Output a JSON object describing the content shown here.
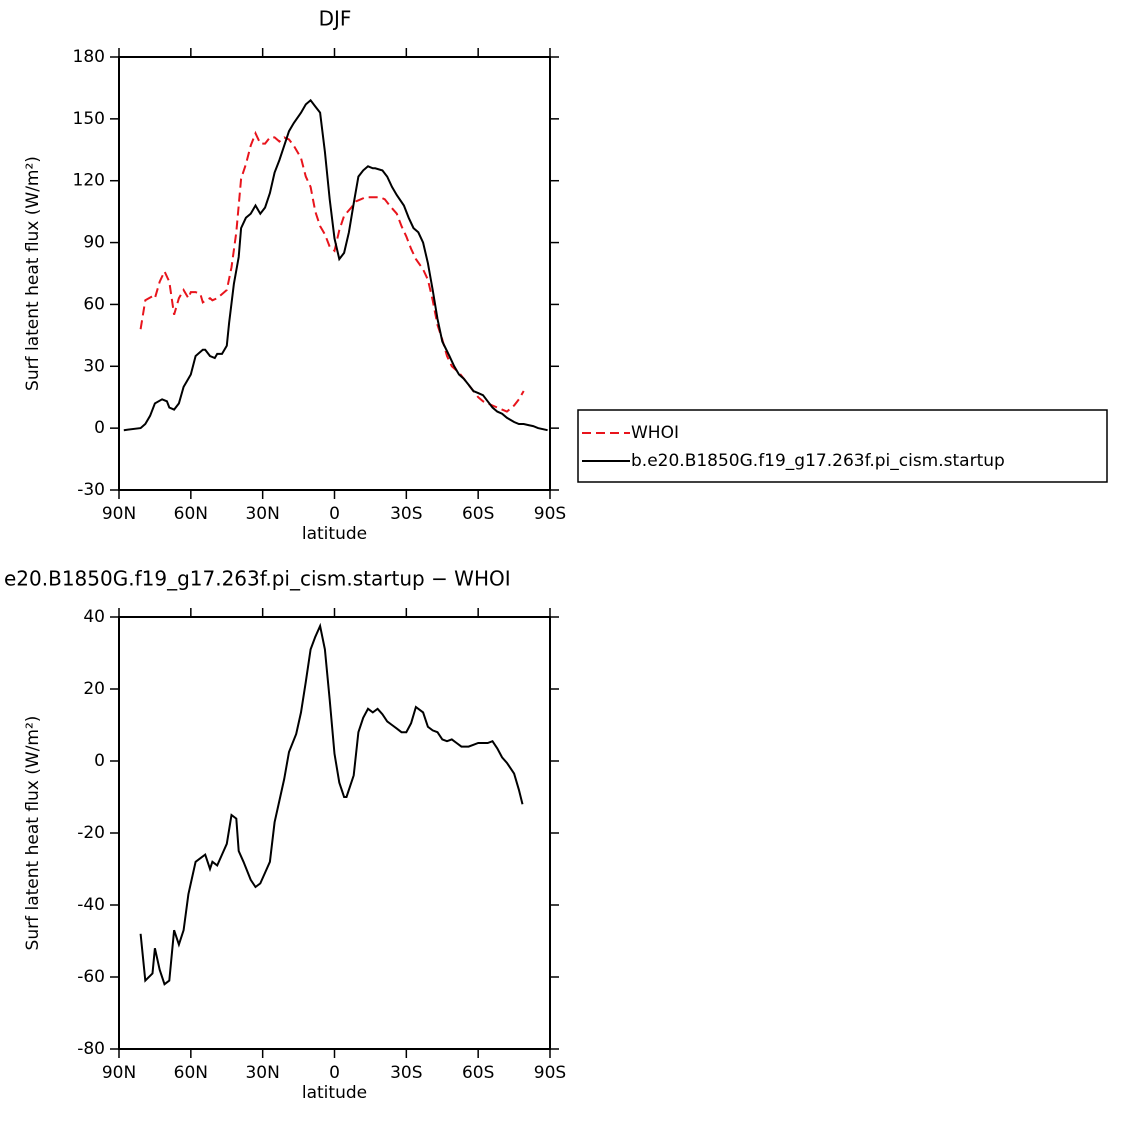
{
  "chart_data": [
    {
      "type": "line",
      "title": "DJF",
      "x_label": "latitude",
      "y_label": "Surf latent heat flux (W/m²)",
      "xlim": [
        90,
        -90
      ],
      "xticks": [
        {
          "value": 90,
          "label": "90N"
        },
        {
          "value": 60,
          "label": "60N"
        },
        {
          "value": 30,
          "label": "30N"
        },
        0,
        {
          "value": -30,
          "label": "30S"
        },
        {
          "value": -60,
          "label": "60S"
        },
        {
          "value": -90,
          "label": "90S"
        }
      ],
      "ylim": [
        -30,
        180
      ],
      "yticks": [
        -30,
        0,
        30,
        60,
        90,
        120,
        150,
        180
      ],
      "legend_position": "right",
      "series": [
        {
          "name": "WHOI",
          "color": "#e8141c",
          "dashed": true,
          "x": [
            81,
            79,
            76,
            75,
            73,
            71,
            69,
            67,
            65,
            63,
            61,
            60,
            58,
            56,
            55,
            52,
            51,
            49,
            47,
            45,
            43,
            41,
            39,
            37,
            35,
            33,
            31,
            29,
            27,
            25,
            23,
            21,
            19,
            17,
            14,
            12,
            10,
            8,
            6,
            4,
            2,
            0,
            -2,
            -4,
            -7,
            -9,
            -11,
            -13,
            -15,
            -17,
            -19,
            -21,
            -23,
            -26,
            -28,
            -30,
            -32,
            -34,
            -37,
            -39,
            -41,
            -43,
            -45,
            -47,
            -49,
            -52,
            -54,
            -56,
            -58,
            -60,
            -62,
            -64,
            -66,
            -68,
            -70,
            -72,
            -75,
            -77,
            -79
          ],
          "values": [
            48,
            62,
            64,
            63,
            71,
            76,
            71,
            55,
            63,
            67,
            63,
            66,
            66,
            65,
            61,
            63,
            62,
            63,
            65,
            67,
            78,
            95,
            121,
            128,
            137,
            143,
            138,
            138,
            141,
            141,
            139,
            141,
            140,
            137,
            131,
            122,
            117,
            105,
            98,
            94,
            88,
            86,
            96,
            103,
            107,
            110,
            111,
            112,
            112,
            112,
            112,
            111,
            108,
            104,
            98,
            93,
            87,
            82,
            77,
            72,
            62,
            50,
            43,
            35,
            30,
            27,
            24,
            21,
            18,
            15,
            13,
            12,
            11,
            10,
            9,
            8,
            11,
            14,
            18
          ]
        },
        {
          "name": "b.e20.B1850G.f19_g17.263f.pi_cism.startup",
          "color": "#000000",
          "dashed": false,
          "x": [
            88,
            81,
            79,
            77,
            75,
            72,
            70,
            69,
            67,
            65,
            63,
            60,
            58,
            55,
            54,
            52,
            50,
            49,
            47,
            45,
            44,
            42,
            40,
            39,
            37,
            35,
            33,
            31,
            29,
            27,
            25,
            23,
            21,
            19,
            17,
            14,
            12,
            10,
            8,
            6,
            4,
            2,
            0,
            -2,
            -4,
            -6,
            -8,
            -10,
            -12,
            -14,
            -16,
            -17,
            -20,
            -22,
            -24,
            -26,
            -29,
            -31,
            -33,
            -35,
            -37,
            -39,
            -41,
            -43,
            -45,
            -48,
            -50,
            -52,
            -54,
            -56,
            -58,
            -60,
            -62,
            -64,
            -66,
            -68,
            -70,
            -72,
            -75,
            -77,
            -79,
            -81,
            -83,
            -85,
            -89
          ],
          "values": [
            -1,
            0,
            2,
            6,
            12,
            14,
            13,
            10,
            9,
            12,
            20,
            26,
            35,
            38,
            38,
            35,
            34,
            36,
            36,
            40,
            51,
            70,
            83,
            97,
            102,
            104,
            108,
            104,
            107,
            114,
            124,
            130,
            137,
            144,
            148,
            153,
            157,
            159,
            156,
            153,
            134,
            111,
            92,
            82,
            85,
            95,
            109,
            122,
            125,
            127,
            126,
            126,
            125,
            122,
            117,
            113,
            108,
            102,
            97,
            95,
            90,
            80,
            67,
            53,
            42,
            35,
            30,
            26,
            24,
            21,
            18,
            17,
            16,
            13,
            10,
            8,
            7,
            5,
            3,
            2,
            2,
            1.5,
            1,
            0,
            -1
          ]
        }
      ]
    },
    {
      "type": "line",
      "title": "e20.B1850G.f19_g17.263f.pi_cism.startup − WHOI",
      "x_label": "latitude",
      "y_label": "Surf latent heat flux (W/m²)",
      "xlim": [
        90,
        -90
      ],
      "xticks": [
        {
          "value": 90,
          "label": "90N"
        },
        {
          "value": 60,
          "label": "60N"
        },
        {
          "value": 30,
          "label": "30N"
        },
        0,
        {
          "value": -30,
          "label": "30S"
        },
        {
          "value": -60,
          "label": "60S"
        },
        {
          "value": -90,
          "label": "90S"
        }
      ],
      "ylim": [
        -80,
        40
      ],
      "yticks": [
        -80,
        -60,
        -40,
        -20,
        0,
        20,
        40
      ],
      "series": [
        {
          "color": "#000000",
          "dashed": false,
          "x": [
            81,
            79,
            76,
            75,
            73,
            71,
            69,
            67,
            65,
            63,
            61,
            60,
            58,
            56,
            54,
            52,
            51,
            49,
            47,
            45,
            43,
            41,
            40,
            38,
            35,
            33,
            31,
            29,
            27,
            25,
            23,
            21,
            19,
            16,
            14,
            12,
            10,
            8,
            6,
            4,
            2,
            0,
            -2,
            -4,
            -5,
            -8,
            -10,
            -12,
            -14,
            -16,
            -18,
            -20,
            -22,
            -24,
            -26,
            -28,
            -30,
            -32,
            -34,
            -37,
            -39,
            -41,
            -43,
            -45,
            -47,
            -49,
            -51,
            -53,
            -56,
            -58,
            -60,
            -62,
            -64,
            -66,
            -68,
            -70,
            -72,
            -75,
            -77,
            -78.5
          ],
          "values": [
            -48,
            -61,
            -59,
            -52,
            -58,
            -62,
            -61,
            -47,
            -51,
            -47,
            -37,
            -34,
            -28,
            -27,
            -26,
            -30,
            -28,
            -29,
            -26,
            -23,
            -15,
            -16,
            -25,
            -28,
            -33,
            -35,
            -34,
            -31,
            -28,
            -17,
            -11,
            -5,
            2.5,
            7.5,
            13.5,
            22,
            31,
            34.5,
            37.5,
            31,
            17,
            2,
            -6,
            -10,
            -10,
            -4,
            8,
            12,
            14.5,
            13.5,
            14.5,
            13,
            11,
            10,
            9,
            8,
            8,
            10.5,
            15,
            13.5,
            9.5,
            8.5,
            8,
            6,
            5.5,
            6,
            5,
            4,
            4,
            4.5,
            5,
            5,
            5,
            5.5,
            3.5,
            1,
            -0.5,
            -3.5,
            -8,
            -12
          ]
        }
      ]
    }
  ]
}
